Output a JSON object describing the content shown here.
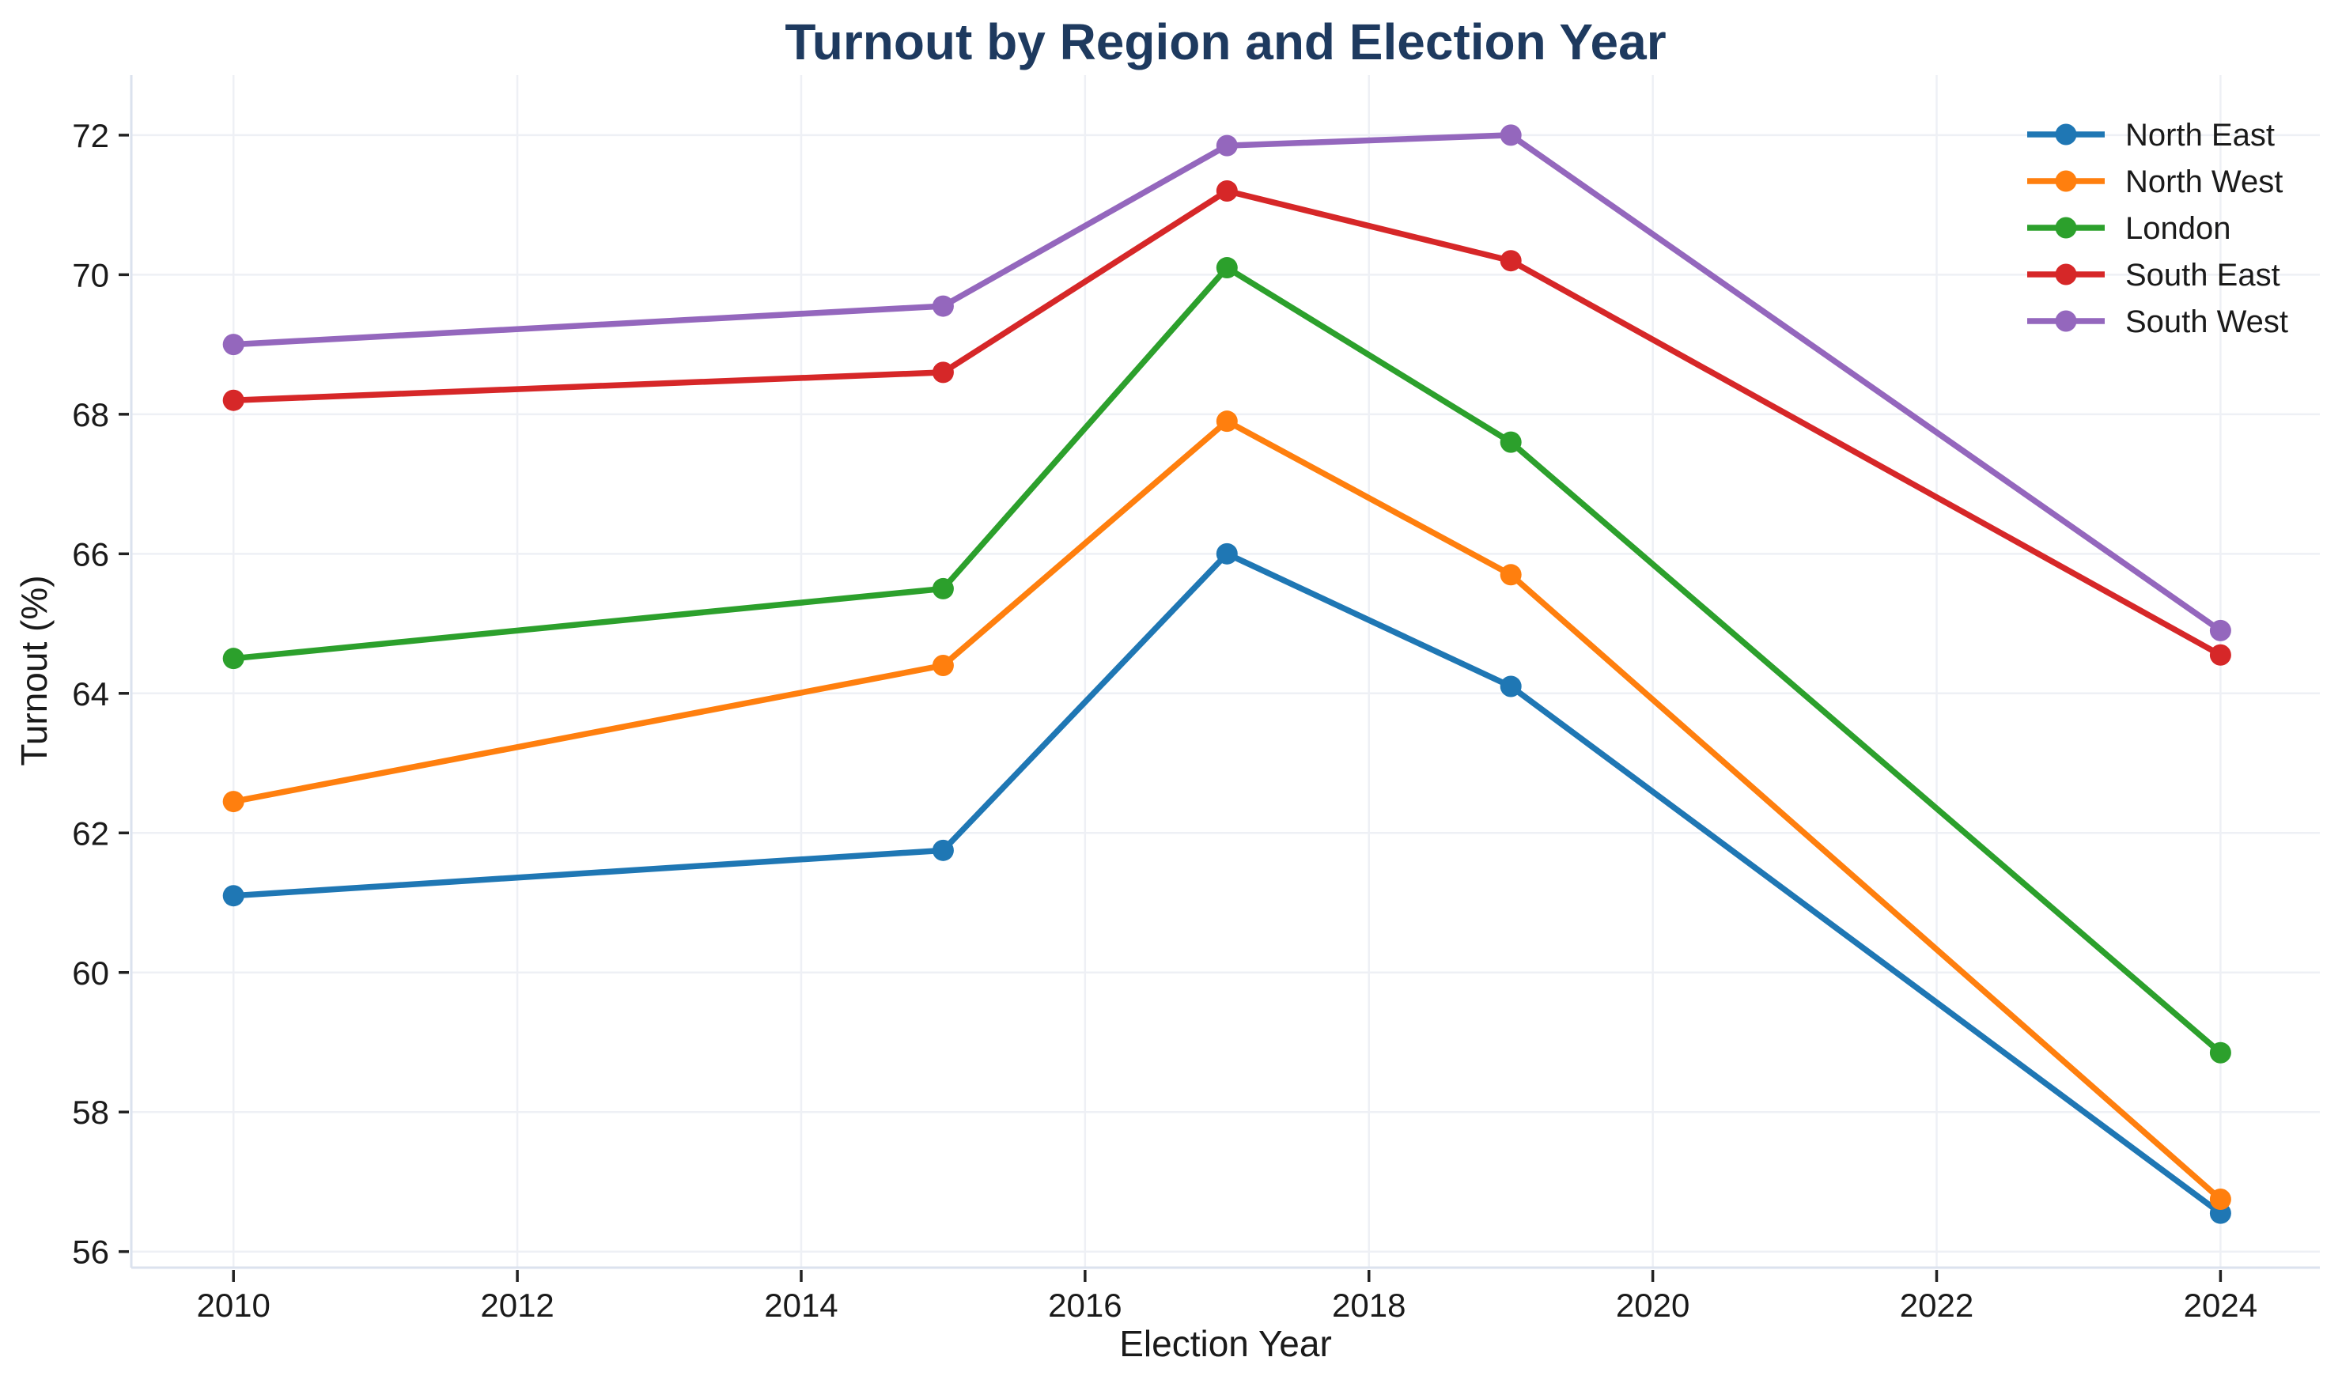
{
  "title": {
    "text": "Turnout by Region and Election Year"
  },
  "axes": {
    "xlabel": "Election Year",
    "ylabel": "Turnout (%)"
  },
  "chart_data": {
    "type": "line",
    "title": "Turnout by Region and Election Year",
    "xlabel": "Election Year",
    "ylabel": "Turnout (%)",
    "x": [
      2010,
      2015,
      2017,
      2019,
      2024
    ],
    "series": [
      {
        "name": "North East",
        "color": "#1f77b4",
        "values": [
          61.1,
          61.75,
          66.0,
          64.1,
          56.55
        ]
      },
      {
        "name": "North West",
        "color": "#ff7f0e",
        "values": [
          62.45,
          64.4,
          67.9,
          65.7,
          56.75
        ]
      },
      {
        "name": "London",
        "color": "#2ca02c",
        "values": [
          64.5,
          65.5,
          70.1,
          67.6,
          58.85
        ]
      },
      {
        "name": "South East",
        "color": "#d62728",
        "values": [
          68.2,
          68.6,
          71.2,
          70.2,
          64.55
        ]
      },
      {
        "name": "South West",
        "color": "#9467bd",
        "values": [
          69.0,
          69.55,
          71.85,
          72.0,
          64.9
        ]
      }
    ],
    "x_ticks": [
      2010,
      2012,
      2014,
      2016,
      2018,
      2020,
      2022,
      2024
    ],
    "y_ticks": [
      56,
      58,
      60,
      62,
      64,
      66,
      68,
      70,
      72
    ],
    "xlim": [
      2009.28,
      2024.7
    ],
    "ylim": [
      55.77,
      72.86
    ],
    "grid": true,
    "marker": "circle",
    "legend": {
      "position": "upper right",
      "labels": [
        "North East",
        "North West",
        "London",
        "South East",
        "South West"
      ]
    }
  },
  "style": {
    "title_color": "#1e3a5f",
    "text_color": "#1a1a1a",
    "grid_color": "#eef0f5",
    "spine_color": "#dbe2ee",
    "tick_color": "#222222",
    "background": "#ffffff"
  }
}
